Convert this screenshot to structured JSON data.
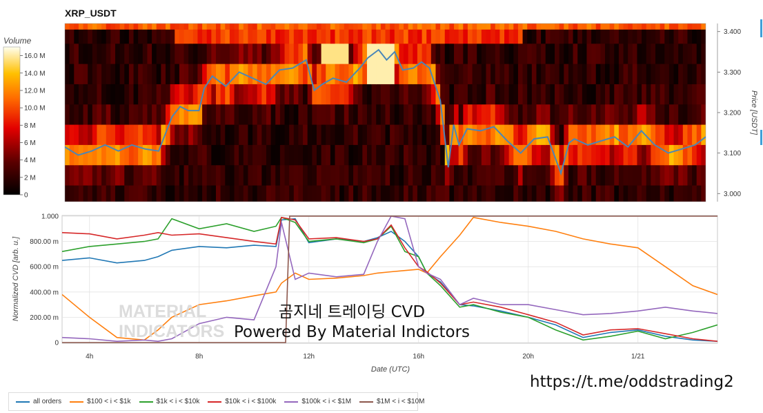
{
  "title": "XRP_USDT",
  "colorbar": {
    "label": "Volume",
    "ticks": [
      "16.0 M",
      "14.0 M",
      "12.0 M",
      "10.0 M",
      "8 M",
      "6 M",
      "4 M",
      "2 M",
      "0"
    ]
  },
  "heatmap_axis": {
    "ylabel": "Price [USDT]",
    "ticks": [
      "3.400",
      "3.300",
      "3.200",
      "3.100",
      "3.000"
    ]
  },
  "cvd_axis": {
    "ylabel": "Normalized CVD [arb. u.]",
    "xlabel": "Date (UTC)",
    "yticks": [
      "1.000",
      "800.00 m",
      "600.00 m",
      "400.00 m",
      "200.00 m",
      "0"
    ],
    "xticks": [
      "4h",
      "8h",
      "12h",
      "16h",
      "20h",
      "1/21"
    ]
  },
  "overlay": {
    "line1": "곰지네 트레이딩 CVD",
    "line2": "Powered By Material Indictors",
    "link": "https://t.me/oddstrading2"
  },
  "watermark": {
    "line1": "MATERIAL",
    "line2": "INDICATORS"
  },
  "legend": [
    {
      "label": "all orders",
      "color": "#1f77b4"
    },
    {
      "label": "$100 < i < $1k",
      "color": "#ff7f0e"
    },
    {
      "label": "$1k < i < $10k",
      "color": "#2ca02c"
    },
    {
      "label": "$10k < i < $100k",
      "color": "#d62728"
    },
    {
      "label": "$100k < i < $1M",
      "color": "#9467bd"
    },
    {
      "label": "$1M < i < $10M",
      "color": "#8c564b"
    }
  ],
  "chart_data": [
    {
      "type": "heatmap",
      "title": "XRP_USDT",
      "ylabel": "Price [USDT]",
      "ylim": [
        2.98,
        3.42
      ],
      "colorbar_label": "Volume",
      "colorbar_range": [
        0,
        17
      ],
      "price_series": {
        "color": "#4a86b8",
        "x_hours": [
          3.0,
          3.5,
          4.0,
          4.5,
          5.0,
          5.5,
          6.0,
          6.5,
          7.0,
          7.3,
          7.6,
          8.0,
          8.2,
          8.5,
          9.0,
          9.5,
          10.0,
          10.5,
          11.0,
          11.5,
          12.0,
          12.3,
          12.6,
          13.0,
          13.5,
          14.0,
          14.3,
          14.7,
          15.0,
          15.3,
          15.6,
          16.0,
          16.3,
          16.6,
          17.0,
          17.3,
          17.5,
          17.7,
          18.0,
          18.5,
          19.0,
          19.5,
          20.0,
          20.5,
          21.0,
          21.5,
          21.8,
          22.0,
          22.5,
          23.0,
          23.5,
          24.0,
          24.5,
          25.0,
          25.5,
          26.0,
          26.5,
          26.9
        ],
        "y": [
          3.115,
          3.095,
          3.105,
          3.12,
          3.105,
          3.12,
          3.11,
          3.105,
          3.19,
          3.215,
          3.205,
          3.205,
          3.26,
          3.29,
          3.265,
          3.3,
          3.285,
          3.27,
          3.305,
          3.31,
          3.33,
          3.255,
          3.27,
          3.285,
          3.275,
          3.31,
          3.335,
          3.355,
          3.33,
          3.35,
          3.305,
          3.31,
          3.325,
          3.31,
          3.23,
          3.065,
          3.17,
          3.12,
          3.16,
          3.155,
          3.165,
          3.13,
          3.1,
          3.135,
          3.14,
          3.05,
          3.125,
          3.135,
          3.12,
          3.13,
          3.14,
          3.115,
          3.155,
          3.12,
          3.1,
          3.11,
          3.12,
          3.14
        ]
      }
    },
    {
      "type": "line",
      "xlabel": "Date (UTC)",
      "ylabel": "Normalized CVD [arb. u.]",
      "xlim": [
        3.0,
        26.9
      ],
      "ylim": [
        0,
        1
      ],
      "xticks": [
        {
          "label": "4h",
          "x": 4
        },
        {
          "label": "8h",
          "x": 8
        },
        {
          "label": "12h",
          "x": 12
        },
        {
          "label": "16h",
          "x": 16
        },
        {
          "label": "20h",
          "x": 20
        },
        {
          "label": "1/21",
          "x": 24
        }
      ],
      "x": [
        3.0,
        4.0,
        5.0,
        6.0,
        6.5,
        7.0,
        8.0,
        9.0,
        10.0,
        10.8,
        11.0,
        11.5,
        12.0,
        13.0,
        14.0,
        14.5,
        15.0,
        15.5,
        16.0,
        16.3,
        16.8,
        17.5,
        18.0,
        19.0,
        20.0,
        21.0,
        22.0,
        23.0,
        24.0,
        25.0,
        26.0,
        26.9
      ],
      "series": [
        {
          "name": "all orders",
          "values": [
            0.65,
            0.67,
            0.63,
            0.65,
            0.68,
            0.73,
            0.76,
            0.75,
            0.77,
            0.76,
            0.97,
            0.98,
            0.79,
            0.82,
            0.8,
            0.83,
            0.88,
            0.8,
            0.68,
            0.55,
            0.48,
            0.3,
            0.29,
            0.25,
            0.2,
            0.14,
            0.04,
            0.08,
            0.1,
            0.05,
            0.02,
            0.01
          ]
        },
        {
          "name": "$100 < i < $1k",
          "values": [
            0.38,
            0.2,
            0.04,
            0.02,
            0.1,
            0.2,
            0.3,
            0.33,
            0.37,
            0.4,
            0.47,
            0.55,
            0.5,
            0.51,
            0.53,
            0.55,
            0.56,
            0.57,
            0.58,
            0.55,
            0.68,
            0.85,
            0.99,
            0.95,
            0.92,
            0.88,
            0.82,
            0.78,
            0.75,
            0.6,
            0.45,
            0.38
          ]
        },
        {
          "name": "$1k < i < $10k",
          "values": [
            0.72,
            0.76,
            0.78,
            0.8,
            0.82,
            0.98,
            0.9,
            0.94,
            0.88,
            0.92,
            0.99,
            0.95,
            0.8,
            0.82,
            0.79,
            0.82,
            0.92,
            0.72,
            0.68,
            0.55,
            0.45,
            0.28,
            0.3,
            0.24,
            0.2,
            0.1,
            0.02,
            0.05,
            0.09,
            0.03,
            0.08,
            0.14
          ]
        },
        {
          "name": "$10k < i < $100k",
          "values": [
            0.87,
            0.86,
            0.82,
            0.85,
            0.87,
            0.85,
            0.86,
            0.83,
            0.8,
            0.78,
            0.99,
            0.97,
            0.82,
            0.83,
            0.8,
            0.82,
            0.93,
            0.75,
            0.6,
            0.56,
            0.47,
            0.3,
            0.32,
            0.28,
            0.22,
            0.16,
            0.06,
            0.1,
            0.11,
            0.07,
            0.03,
            0.01
          ]
        },
        {
          "name": "$100k < i < $1M",
          "values": [
            0.04,
            0.03,
            0.01,
            0.02,
            0.01,
            0.03,
            0.15,
            0.2,
            0.18,
            0.6,
            0.95,
            0.5,
            0.55,
            0.52,
            0.54,
            0.8,
            1.0,
            0.98,
            0.6,
            0.55,
            0.5,
            0.3,
            0.35,
            0.3,
            0.3,
            0.26,
            0.22,
            0.23,
            0.25,
            0.28,
            0.25,
            0.23
          ]
        },
        {
          "name": "$1M < i < $10M",
          "values": [
            0,
            0,
            0,
            0,
            0,
            0,
            0,
            0,
            0,
            0,
            0,
            1.0,
            1.0,
            1.0,
            1.0,
            1.0,
            1.0,
            1.0,
            1.0,
            1.0,
            1.0,
            1.0,
            1.0,
            1.0,
            1.0,
            1.0,
            1.0,
            1.0,
            1.0,
            1.0,
            1.0,
            1.0
          ]
        }
      ]
    }
  ]
}
